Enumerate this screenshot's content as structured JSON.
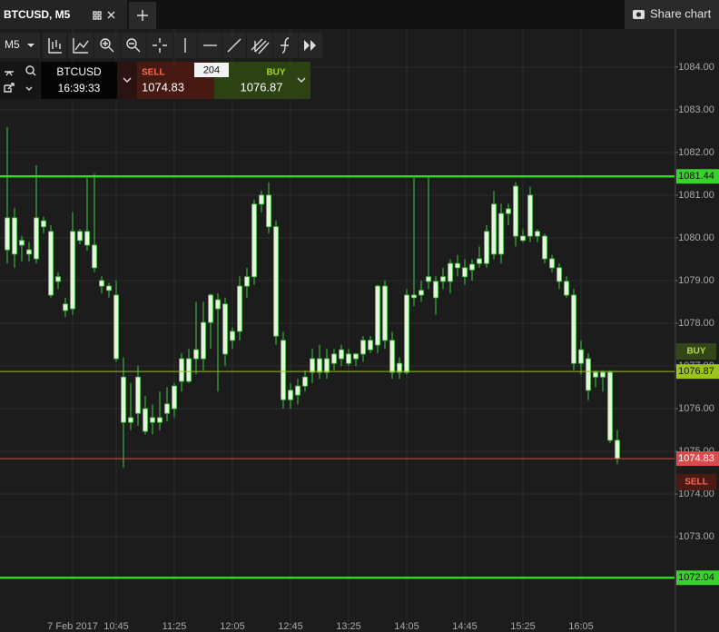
{
  "ui": {
    "tab_title": "BTCUSD, M5",
    "share": "Share chart",
    "interval": "M5",
    "symbol": "BTCUSD",
    "time": "16:39:33",
    "sell_label": "SELL",
    "sell_price": "1074.83",
    "spread": "204",
    "buy_label": "BUY",
    "buy_price": "1076.87",
    "axis_buy": "BUY",
    "axis_sell": "SELL"
  },
  "chart_data": {
    "type": "candlestick",
    "categories": [
      null,
      null,
      null,
      null,
      null,
      null,
      null,
      null,
      null,
      "7 Feb 2017",
      null,
      null,
      null,
      null,
      null,
      "10:45",
      null,
      null,
      null,
      null,
      null,
      null,
      null,
      "11:25",
      null,
      null,
      null,
      null,
      null,
      null,
      null,
      "12:05",
      null,
      null,
      null,
      null,
      null,
      null,
      null,
      "12:45",
      null,
      null,
      null,
      null,
      null,
      null,
      null,
      "13:25",
      null,
      null,
      null,
      null,
      null,
      null,
      null,
      "14:05",
      null,
      null,
      null,
      null,
      null,
      null,
      null,
      "14:45",
      null,
      null,
      null,
      null,
      null,
      null,
      null,
      "15:25",
      null,
      null,
      null,
      null,
      null,
      null,
      null,
      "16:05",
      null,
      null,
      null,
      null,
      null
    ],
    "open": [
      1079.72,
      1080.47,
      1079.83,
      1079.62,
      1079.51,
      1080.4,
      1080.15,
      1078.98,
      1078.45,
      1078.34,
      1080.15,
      1080.15,
      1079.83,
      1079.0,
      1078.87,
      1078.66,
      1076.74,
      1075.68,
      1075.89,
      1076.0,
      1075.68,
      1075.79,
      1075.89,
      1076.0,
      1076.64,
      1077.17,
      1077.17,
      1077.17,
      1078.02,
      1078.55,
      1078.45,
      1077.6,
      1077.81,
      1078.87,
      1079.09,
      1080.79,
      1081.0,
      1080.26,
      1077.6,
      1076.21,
      1076.32,
      1076.53,
      1076.85,
      1077.17,
      1076.85,
      1077.06,
      1077.17,
      1077.28,
      1077.17,
      1077.28,
      1077.6,
      1077.49,
      1078.87,
      1077.6,
      1076.85,
      1076.85,
      1078.66,
      1078.66,
      1078.98,
      1078.98,
      1078.98,
      1078.98,
      1079.4,
      1079.3,
      1079.25,
      1079.4,
      1079.4,
      1079.62,
      1080.57,
      1080.57,
      1080.04,
      1080.04,
      1080.04,
      1080.04,
      1080.04,
      1079.51,
      1079.3,
      1078.98,
      1078.66,
      1077.06,
      1077.17,
      1076.74,
      1076.85,
      1076.85,
      1075.26
    ],
    "high": [
      1082.6,
      1080.7,
      1080.05,
      1079.9,
      1081.7,
      1080.5,
      1080.3,
      1079.2,
      1078.6,
      1080.6,
      1080.2,
      1081.4,
      1081.5,
      1079.1,
      1078.95,
      1079.0,
      1077.2,
      1076.6,
      1077.0,
      1076.3,
      1076.1,
      1076.4,
      1076.5,
      1076.6,
      1077.3,
      1077.4,
      1078.5,
      1078.5,
      1078.7,
      1078.7,
      1078.6,
      1077.9,
      1079.1,
      1079.3,
      1080.9,
      1081.1,
      1081.3,
      1080.4,
      1077.8,
      1076.6,
      1076.7,
      1076.9,
      1077.4,
      1077.5,
      1077.4,
      1077.4,
      1077.5,
      1077.4,
      1077.3,
      1077.7,
      1077.7,
      1078.9,
      1079.0,
      1077.8,
      1077.2,
      1078.8,
      1081.4,
      1079.0,
      1081.44,
      1079.1,
      1079.3,
      1079.5,
      1079.6,
      1079.5,
      1079.5,
      1079.8,
      1080.3,
      1081.1,
      1080.8,
      1080.8,
      1081.3,
      1080.2,
      1081.2,
      1080.2,
      1080.1,
      1079.6,
      1079.4,
      1079.1,
      1078.8,
      1077.6,
      1077.3,
      1076.9,
      1076.9,
      1076.9,
      1075.5
    ],
    "low": [
      1079.4,
      1079.3,
      1079.45,
      1079.45,
      1079.4,
      1080.1,
      1078.6,
      1078.8,
      1078.15,
      1078.2,
      1079.85,
      1079.7,
      1079.2,
      1078.7,
      1078.6,
      1077.1,
      1074.62,
      1075.5,
      1075.6,
      1075.4,
      1075.4,
      1075.5,
      1075.7,
      1075.8,
      1076.4,
      1076.6,
      1076.8,
      1076.9,
      1077.4,
      1076.4,
      1077.0,
      1077.4,
      1077.6,
      1078.6,
      1078.9,
      1080.6,
      1080.1,
      1077.5,
      1076.0,
      1076.0,
      1076.1,
      1076.4,
      1076.6,
      1076.7,
      1076.7,
      1076.9,
      1077.0,
      1077.0,
      1077.0,
      1077.1,
      1077.3,
      1077.3,
      1077.4,
      1076.7,
      1076.7,
      1076.8,
      1078.4,
      1078.5,
      1078.8,
      1078.2,
      1078.8,
      1078.7,
      1079.1,
      1078.9,
      1079.0,
      1079.3,
      1079.3,
      1079.5,
      1079.4,
      1080.3,
      1079.8,
      1079.9,
      1079.9,
      1079.9,
      1079.4,
      1079.2,
      1078.8,
      1078.6,
      1076.9,
      1076.8,
      1076.2,
      1076.5,
      1076.4,
      1075.2,
      1074.7
    ],
    "close": [
      1080.47,
      1079.62,
      1079.94,
      1079.72,
      1080.47,
      1080.26,
      1078.66,
      1079.09,
      1078.3,
      1080.15,
      1079.94,
      1079.83,
      1079.3,
      1078.87,
      1078.77,
      1077.17,
      1075.68,
      1075.79,
      1076.74,
      1075.47,
      1075.79,
      1075.68,
      1076.11,
      1076.53,
      1077.17,
      1076.64,
      1077.38,
      1078.02,
      1078.66,
      1078.34,
      1077.28,
      1077.81,
      1078.87,
      1079.09,
      1080.79,
      1081.0,
      1080.26,
      1077.7,
      1076.21,
      1076.43,
      1076.53,
      1076.74,
      1077.17,
      1076.85,
      1077.17,
      1077.28,
      1077.38,
      1077.06,
      1077.28,
      1077.6,
      1077.38,
      1078.87,
      1077.6,
      1076.85,
      1077.06,
      1078.66,
      1078.6,
      1078.77,
      1079.09,
      1078.6,
      1079.09,
      1079.4,
      1079.3,
      1079.09,
      1079.38,
      1079.51,
      1080.15,
      1080.79,
      1079.62,
      1080.68,
      1081.21,
      1079.94,
      1081.0,
      1080.15,
      1079.51,
      1079.3,
      1078.98,
      1078.66,
      1077.06,
      1077.38,
      1076.43,
      1076.85,
      1076.74,
      1075.26,
      1074.83
    ],
    "candle_color": "#3fcc3f",
    "body_fill": "#e6f3dc",
    "ylim": [
      1070.77,
      1084.89
    ],
    "yticks": [
      {
        "value": 1073,
        "label": "1073.00"
      },
      {
        "value": 1074,
        "label": "1074.00"
      },
      {
        "value": 1075,
        "label": "1075.00"
      },
      {
        "value": 1076,
        "label": "1076.00"
      },
      {
        "value": 1077,
        "label": "1077.00"
      },
      {
        "value": 1078,
        "label": "1078.00"
      },
      {
        "value": 1079,
        "label": "1079.00"
      },
      {
        "value": 1080,
        "label": "1080.00"
      },
      {
        "value": 1081,
        "label": "1081.00"
      },
      {
        "value": 1082,
        "label": "1082.00"
      },
      {
        "value": 1083,
        "label": "1083.00"
      },
      {
        "value": 1084,
        "label": "1084.00"
      }
    ],
    "grid": true,
    "hlines": [
      {
        "value": 1081.44,
        "color": "#39d12c"
      },
      {
        "value": 1076.87,
        "color": "#9bc31c"
      },
      {
        "value": 1074.83,
        "color": "#d84c4c"
      },
      {
        "value": 1072.04,
        "color": "#39d12c"
      }
    ]
  }
}
